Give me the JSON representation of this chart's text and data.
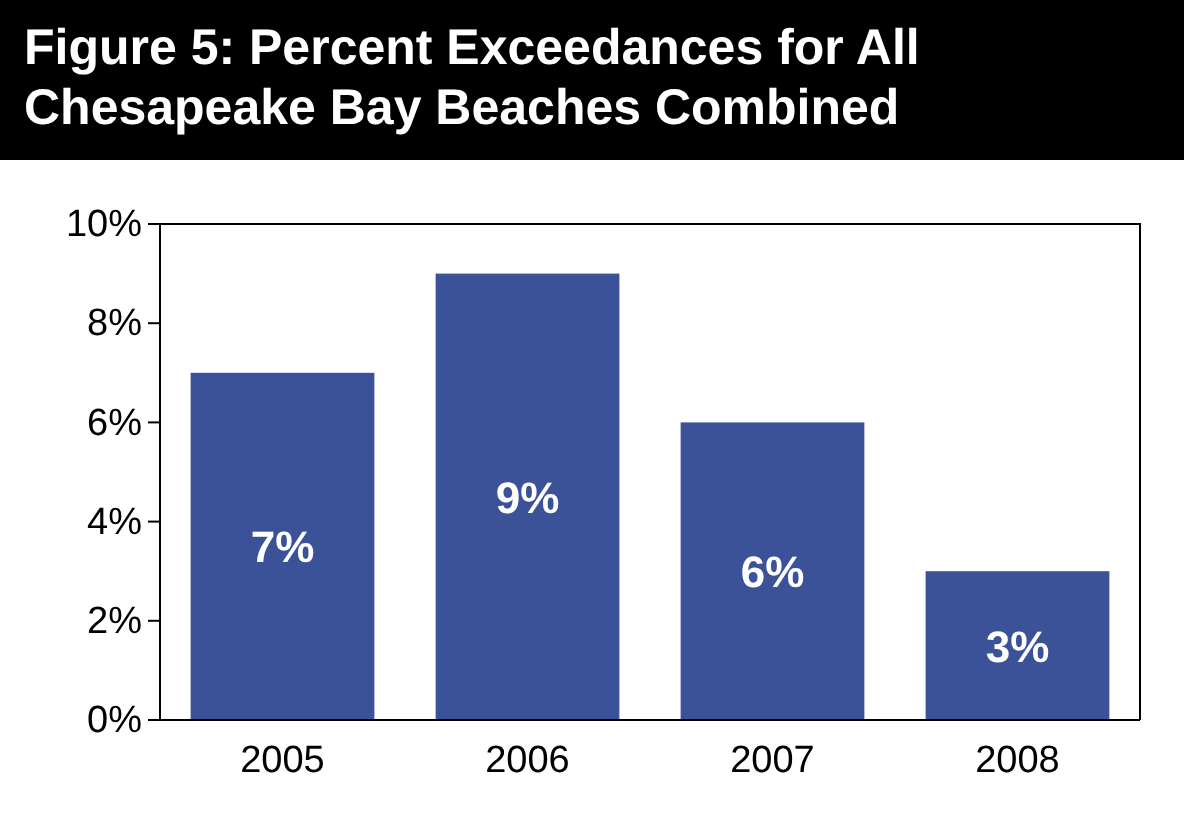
{
  "chart_data": {
    "type": "bar",
    "title": "Figure 5: Percent Exceedances for All Chesapeake Bay Beaches Combined",
    "categories": [
      "2005",
      "2006",
      "2007",
      "2008"
    ],
    "values": [
      7,
      9,
      6,
      3
    ],
    "value_labels": [
      "7%",
      "9%",
      "6%",
      "3%"
    ],
    "color": "#3b5198",
    "ylim": [
      0,
      10
    ],
    "yticks": [
      {
        "value": 0,
        "label": "0%"
      },
      {
        "value": 2,
        "label": "2%"
      },
      {
        "value": 4,
        "label": "4%"
      },
      {
        "value": 6,
        "label": "6%"
      },
      {
        "value": 8,
        "label": "8%"
      },
      {
        "value": 10,
        "label": "10%"
      }
    ],
    "grid": false
  }
}
